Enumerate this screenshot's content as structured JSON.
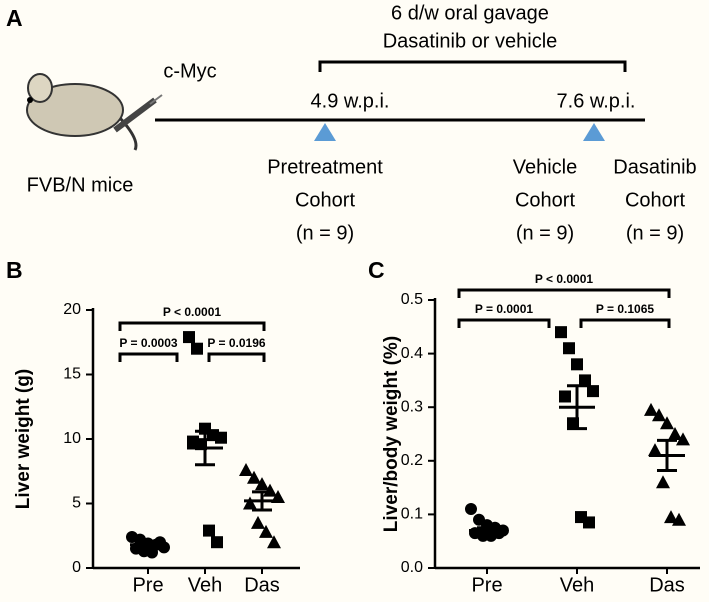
{
  "panel_a": {
    "label": "A",
    "treatment_line1": "6 d/w oral gavage",
    "treatment_line2": "Dasatinib or vehicle",
    "injection": "c-Myc",
    "timepoint1": "4.9 w.p.i.",
    "timepoint2": "7.6 w.p.i.",
    "mice": "FVB/N mice",
    "cohorts": [
      [
        "Pretreatment",
        "Cohort",
        "(n = 9)"
      ],
      [
        "Vehicle",
        "Cohort",
        "(n = 9)"
      ],
      [
        "Dasatinib",
        "Cohort",
        "(n = 9)"
      ]
    ]
  },
  "chart_data": [
    {
      "type": "strip",
      "panel": "B",
      "ylabel": "Liver weight (g)",
      "categories": [
        "Pre",
        "Veh",
        "Das"
      ],
      "groups": [
        {
          "marker": "circle",
          "color": "#000000",
          "values": [
            2.4,
            2.2,
            1.9,
            1.8,
            1.6,
            1.5,
            1.3,
            1.2,
            2.0
          ],
          "mean": 1.8,
          "sem": 0.15
        },
        {
          "marker": "square",
          "color": "#000000",
          "values": [
            17.9,
            17.0,
            10.8,
            10.3,
            10.1,
            9.8,
            9.6,
            2.9,
            2.0
          ],
          "mean": 9.3,
          "sem": 1.3
        },
        {
          "marker": "triangle",
          "color": "#000000",
          "values": [
            7.6,
            7.0,
            6.5,
            6.0,
            5.5,
            5.0,
            3.5,
            2.8,
            2.0
          ],
          "mean": 5.2,
          "sem": 0.7
        }
      ],
      "annotations": [
        "P < 0.0001",
        "P = 0.0003",
        "P = 0.0196"
      ],
      "ylim": [
        0,
        20
      ],
      "yticks": [
        0,
        5,
        10,
        15,
        20
      ]
    },
    {
      "type": "strip",
      "panel": "C",
      "ylabel": "Liver/body weight (%)",
      "categories": [
        "Pre",
        "Veh",
        "Das"
      ],
      "groups": [
        {
          "marker": "circle",
          "color": "#000000",
          "values": [
            0.11,
            0.09,
            0.08,
            0.075,
            0.07,
            0.065,
            0.06,
            0.06,
            0.065
          ],
          "mean": 0.07,
          "sem": 0.005
        },
        {
          "marker": "square",
          "color": "#000000",
          "values": [
            0.44,
            0.41,
            0.38,
            0.35,
            0.33,
            0.32,
            0.27,
            0.095,
            0.085
          ],
          "mean": 0.3,
          "sem": 0.04
        },
        {
          "marker": "triangle",
          "color": "#000000",
          "values": [
            0.295,
            0.285,
            0.27,
            0.25,
            0.24,
            0.22,
            0.16,
            0.095,
            0.09
          ],
          "mean": 0.21,
          "sem": 0.028
        }
      ],
      "annotations": [
        "P < 0.0001",
        "P = 0.0001",
        "P = 0.1065"
      ],
      "ylim": [
        0,
        0.5
      ],
      "yticks": [
        {
          "value": 0,
          "label": "0.0"
        },
        0.1,
        0.2,
        0.3,
        0.4,
        0.5
      ]
    }
  ]
}
